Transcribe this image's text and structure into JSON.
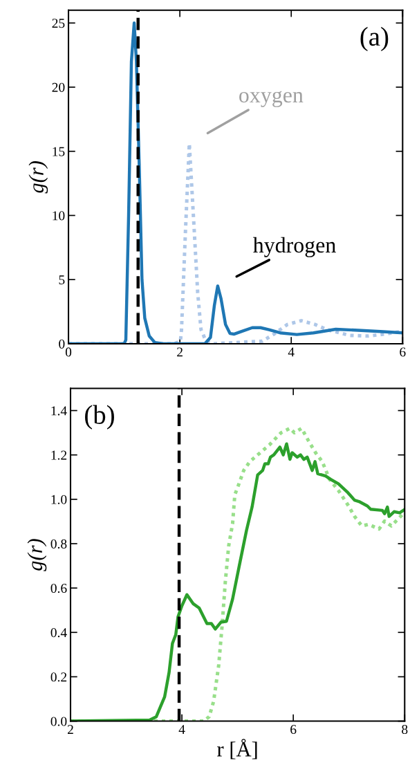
{
  "chart_data": [
    {
      "type": "line",
      "ylabel": "g(r)",
      "xlim": [
        0,
        6
      ],
      "ylim": [
        0,
        26
      ],
      "xticks": [
        0,
        2,
        4,
        6
      ],
      "yticks": [
        0,
        5,
        10,
        15,
        20,
        25
      ],
      "grid": false,
      "legend": false,
      "marker": "none",
      "series": [
        {
          "color": "#aec7e8",
          "line_style": "dotted",
          "x": [
            0,
            1.9,
            2.01,
            2.03,
            2.1,
            2.17,
            2.26,
            2.32,
            2.38,
            2.47,
            2.6,
            3.48,
            3.69,
            3.93,
            4.18,
            4.43,
            4.64,
            5.05,
            5.38,
            5.67,
            5.96
          ],
          "values": [
            0,
            0,
            0.2,
            1.1,
            8.7,
            15.6,
            8.7,
            4,
            1.1,
            0.2,
            0,
            0.2,
            0.75,
            1.5,
            1.8,
            1.5,
            1.1,
            0.65,
            0.6,
            0.75,
            0.95
          ]
        },
        {
          "color": "#1f77b4",
          "line_style": "solid",
          "x": [
            0,
            1.0,
            1.03,
            1.08,
            1.13,
            1.18,
            1.22,
            1.27,
            1.32,
            1.37,
            1.45,
            1.55,
            1.7,
            2.45,
            2.55,
            2.62,
            2.68,
            2.74,
            2.82,
            2.9,
            2.97,
            3.1,
            3.3,
            3.45,
            3.6,
            3.8,
            4.1,
            4.4,
            4.8,
            5.2,
            5.6,
            6.0
          ],
          "values": [
            0,
            0,
            0.3,
            10,
            22,
            25,
            22,
            14,
            5,
            2,
            0.6,
            0.1,
            0,
            0,
            0.5,
            3,
            4.5,
            3.5,
            1.5,
            0.8,
            0.75,
            0.95,
            1.25,
            1.25,
            1.1,
            0.85,
            0.72,
            0.85,
            1.13,
            1.05,
            0.95,
            0.85
          ]
        }
      ],
      "ref_lines": [
        {
          "axis": "x",
          "value": 1.25,
          "color": "#000000",
          "line_style": "dashed"
        }
      ],
      "annotations": [
        "(a)",
        {
          "text": "oxygen",
          "x": 2.17,
          "y": 15.6
        },
        {
          "text": "hydrogen",
          "x": 2.68,
          "y": 4.5
        }
      ]
    },
    {
      "type": "line",
      "xlabel": "r [Å]",
      "ylabel": "g(r)",
      "xlim": [
        2,
        8
      ],
      "ylim": [
        0,
        1.5
      ],
      "xticks": [
        2,
        4,
        6,
        8
      ],
      "yticks": [
        {
          "value": 0,
          "label": "0.0"
        },
        {
          "value": 0.2,
          "label": "0.2"
        },
        {
          "value": 0.4,
          "label": "0.4"
        },
        {
          "value": 0.6,
          "label": "0.6"
        },
        {
          "value": 0.8,
          "label": "0.8"
        },
        {
          "value": 1.0,
          "label": "1.0"
        },
        {
          "value": 1.2,
          "label": "1.2"
        },
        {
          "value": 1.4,
          "label": "1.4"
        }
      ],
      "grid": false,
      "legend": false,
      "marker": "none",
      "series": [
        {
          "color": "#98df8a",
          "line_style": "dotted",
          "x": [
            2,
            4.39,
            4.49,
            4.57,
            4.66,
            4.72,
            4.78,
            4.84,
            4.91,
            4.95,
            5.01,
            5.11,
            5.22,
            5.36,
            5.57,
            5.78,
            5.94,
            6.02,
            6.15,
            6.27,
            6.4,
            6.52,
            6.65,
            6.81,
            6.98,
            7.1,
            7.23,
            7.35,
            7.54,
            7.64,
            7.76,
            7.97
          ],
          "values": [
            0,
            0,
            0.02,
            0.09,
            0.25,
            0.425,
            0.63,
            0.79,
            0.89,
            1.02,
            1.06,
            1.13,
            1.17,
            1.2,
            1.245,
            1.3,
            1.32,
            1.3,
            1.32,
            1.265,
            1.21,
            1.17,
            1.09,
            1.04,
            0.975,
            0.923,
            0.88,
            0.887,
            0.866,
            0.902,
            0.88,
            0.934
          ]
        },
        {
          "color": "#2ca02c",
          "line_style": "solid",
          "x": [
            2,
            3.42,
            3.54,
            3.69,
            3.77,
            3.83,
            3.89,
            3.93,
            4.0,
            4.09,
            4.2,
            4.31,
            4.45,
            4.53,
            4.6,
            4.7,
            4.8,
            4.91,
            5.03,
            5.16,
            5.26,
            5.36,
            5.45,
            5.49,
            5.55,
            5.59,
            5.65,
            5.76,
            5.82,
            5.88,
            5.94,
            5.98,
            6.07,
            6.13,
            6.19,
            6.25,
            6.34,
            6.39,
            6.44,
            6.58,
            6.67,
            6.81,
            6.98,
            7.1,
            7.18,
            7.33,
            7.39,
            7.6,
            7.64,
            7.69,
            7.72,
            7.81,
            7.91,
            8.0
          ],
          "values": [
            0,
            0.005,
            0.02,
            0.11,
            0.22,
            0.35,
            0.39,
            0.47,
            0.52,
            0.57,
            0.53,
            0.51,
            0.44,
            0.44,
            0.415,
            0.446,
            0.45,
            0.55,
            0.7,
            0.86,
            0.965,
            1.11,
            1.13,
            1.16,
            1.16,
            1.19,
            1.2,
            1.235,
            1.2,
            1.25,
            1.18,
            1.21,
            1.19,
            1.2,
            1.18,
            1.19,
            1.13,
            1.17,
            1.115,
            1.105,
            1.09,
            1.07,
            1.03,
            0.996,
            0.99,
            0.97,
            0.955,
            0.95,
            0.935,
            0.965,
            0.923,
            0.944,
            0.939,
            0.954
          ]
        }
      ],
      "ref_lines": [
        {
          "axis": "x",
          "value": 3.95,
          "color": "#000000",
          "line_style": "dashed"
        }
      ],
      "annotations": [
        "(b)"
      ]
    }
  ]
}
